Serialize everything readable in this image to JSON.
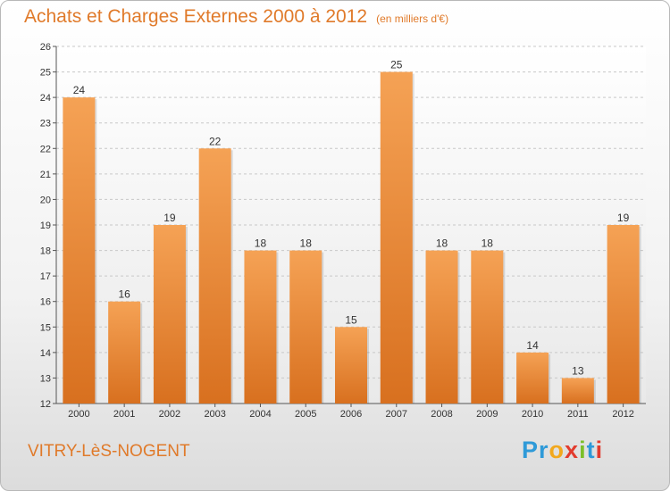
{
  "chart_data": {
    "type": "bar",
    "title": "Achats et Charges Externes 2000 à 2012",
    "subtitle": "(en milliers d'€)",
    "categories": [
      "2000",
      "2001",
      "2002",
      "2003",
      "2004",
      "2005",
      "2006",
      "2007",
      "2008",
      "2009",
      "2010",
      "2011",
      "2012"
    ],
    "values": [
      24,
      16,
      19,
      22,
      18,
      18,
      15,
      25,
      18,
      18,
      14,
      13,
      19
    ],
    "ylim": [
      12,
      26
    ],
    "yticks": [
      12,
      13,
      14,
      15,
      16,
      17,
      18,
      19,
      20,
      21,
      22,
      23,
      24,
      25,
      26
    ],
    "xlabel": "",
    "ylabel": "",
    "grid": true,
    "bar_color_top": "#f5a255",
    "bar_color_bottom": "#d8701f"
  },
  "footer": {
    "city": "VITRY-LèS-NOGENT",
    "logo": {
      "letters": [
        "P",
        "r",
        "o",
        "x",
        "i",
        "t",
        "i"
      ],
      "colors": [
        "#2f9ad8",
        "#2f9ad8",
        "#f2a81d",
        "#e23b2e",
        "#7bbf2a",
        "#2f9ad8",
        "#e23b2e"
      ]
    }
  },
  "colors": {
    "accent": "#e07a2a",
    "grid": "#c8c8c8"
  }
}
